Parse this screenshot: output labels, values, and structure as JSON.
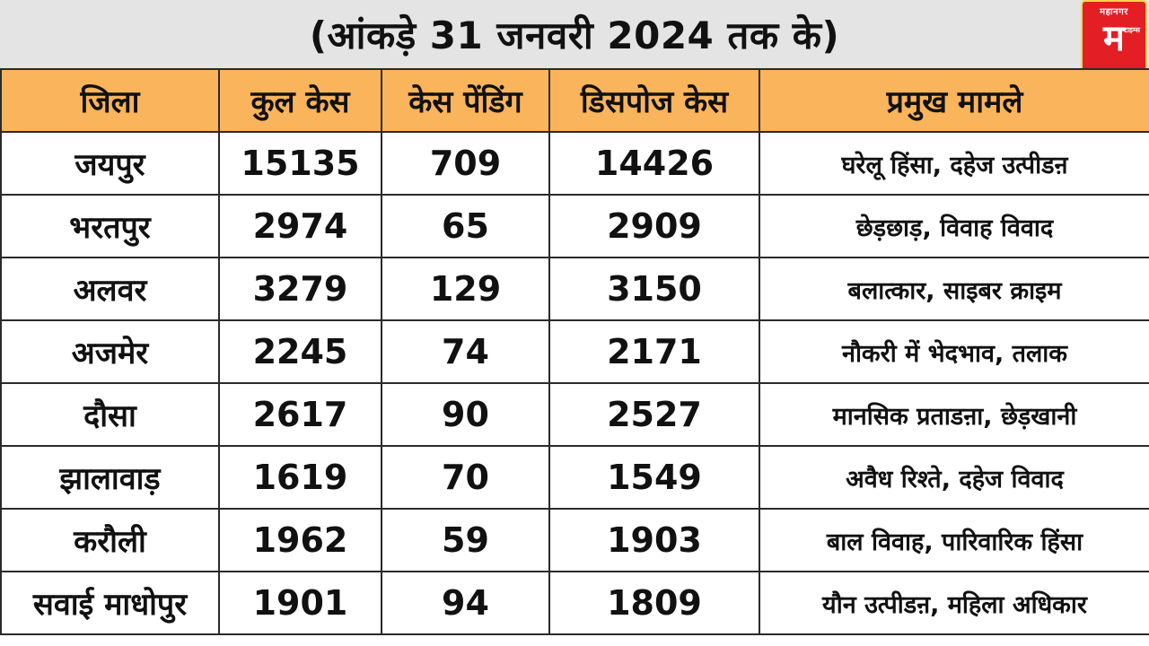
{
  "header": {
    "title": "(आंकड़े 31 जनवरी 2024 तक के)",
    "logo_text": "महानगर",
    "logo_mark": "म",
    "logo_sub": "टाइम्स"
  },
  "table": {
    "columns": [
      "जिला",
      "कुल केस",
      "केस पेंडिंग",
      "डिसपोज केस",
      "प्रमुख मामले"
    ],
    "rows": [
      [
        "जयपुर",
        "15135",
        "709",
        "14426",
        "घरेलू हिंसा, दहेज उत्पीडऩ"
      ],
      [
        "भरतपुर",
        "2974",
        "65",
        "2909",
        "छेड़छाड़, विवाह विवाद"
      ],
      [
        "अलवर",
        "3279",
        "129",
        "3150",
        "बलात्कार, साइबर क्राइम"
      ],
      [
        "अजमेर",
        "2245",
        "74",
        "2171",
        "नौकरी में भेदभाव, तलाक"
      ],
      [
        "दौसा",
        "2617",
        "90",
        "2527",
        "मानसिक प्रताडऩा, छेड़खानी"
      ],
      [
        "झालावाड़",
        "1619",
        "70",
        "1549",
        "अवैध रिश्ते, दहेज विवाद"
      ],
      [
        "करौली",
        "1962",
        "59",
        "1903",
        "बाल विवाह, पारिवारिक हिंसा"
      ],
      [
        "सवाई माधोपुर",
        "1901",
        "94",
        "1809",
        "यौन उत्पीडऩ, महिला अधिकार"
      ]
    ]
  },
  "colors": {
    "header_bg": "#f9b45c",
    "title_bg": "#e4e4e4",
    "logo_bg": "#e31e24"
  }
}
